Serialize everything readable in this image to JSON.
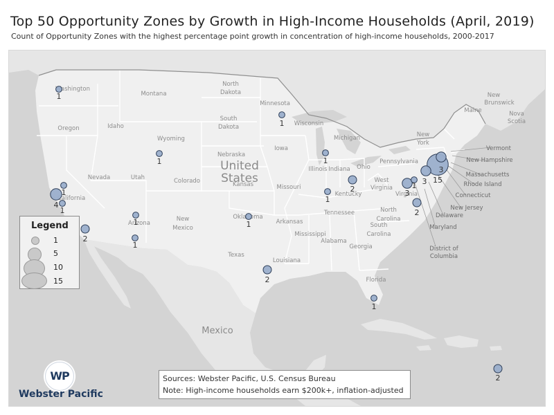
{
  "title": "Top 50 Opportunity Zones by Growth in High-Income Households (April, 2019)",
  "subtitle": "Count of Opportunity Zones with the highest percentage point growth in concentration of high-income households, 2000-2017",
  "country_labels": {
    "united_states_line1": "United",
    "united_states_line2": "States",
    "mexico": "Mexico"
  },
  "state_labels": [
    {
      "name": "washington",
      "text": "Washington"
    },
    {
      "name": "oregon",
      "text": "Oregon"
    },
    {
      "name": "california",
      "text": "California"
    },
    {
      "name": "nevada",
      "text": "Nevada"
    },
    {
      "name": "idaho",
      "text": "Idaho"
    },
    {
      "name": "montana",
      "text": "Montana"
    },
    {
      "name": "wyoming",
      "text": "Wyoming"
    },
    {
      "name": "utah",
      "text": "Utah"
    },
    {
      "name": "arizona",
      "text": "Arizona"
    },
    {
      "name": "colorado",
      "text": "Colorado"
    },
    {
      "name": "new-mexico-1",
      "text": "New"
    },
    {
      "name": "new-mexico-2",
      "text": "Mexico"
    },
    {
      "name": "north-dakota-1",
      "text": "North"
    },
    {
      "name": "north-dakota-2",
      "text": "Dakota"
    },
    {
      "name": "south-dakota-1",
      "text": "South"
    },
    {
      "name": "south-dakota-2",
      "text": "Dakota"
    },
    {
      "name": "nebraska",
      "text": "Nebraska"
    },
    {
      "name": "kansas",
      "text": "Kansas"
    },
    {
      "name": "oklahoma",
      "text": "Oklahoma"
    },
    {
      "name": "texas",
      "text": "Texas"
    },
    {
      "name": "minnesota",
      "text": "Minnesota"
    },
    {
      "name": "iowa",
      "text": "Iowa"
    },
    {
      "name": "missouri",
      "text": "Missouri"
    },
    {
      "name": "arkansas",
      "text": "Arkansas"
    },
    {
      "name": "louisiana",
      "text": "Louisiana"
    },
    {
      "name": "wisconsin",
      "text": "Wisconsin"
    },
    {
      "name": "illinois",
      "text": "Illinois"
    },
    {
      "name": "michigan",
      "text": "Michigan"
    },
    {
      "name": "indiana",
      "text": "Indiana"
    },
    {
      "name": "ohio",
      "text": "Ohio"
    },
    {
      "name": "kentucky",
      "text": "Kentucky"
    },
    {
      "name": "tennessee",
      "text": "Tennessee"
    },
    {
      "name": "mississippi",
      "text": "Mississippi"
    },
    {
      "name": "alabama",
      "text": "Alabama"
    },
    {
      "name": "georgia",
      "text": "Georgia"
    },
    {
      "name": "florida",
      "text": "Florida"
    },
    {
      "name": "south-carolina-1",
      "text": "South"
    },
    {
      "name": "south-carolina-2",
      "text": "Carolina"
    },
    {
      "name": "north-carolina-1",
      "text": "North"
    },
    {
      "name": "north-carolina-2",
      "text": "Carolina"
    },
    {
      "name": "virginia",
      "text": "Virginia"
    },
    {
      "name": "west-virginia-1",
      "text": "West"
    },
    {
      "name": "west-virginia-2",
      "text": "Virginia"
    },
    {
      "name": "pennsylvania",
      "text": "Pennsylvania"
    },
    {
      "name": "new-york-1",
      "text": "New"
    },
    {
      "name": "new-york-2",
      "text": "York"
    },
    {
      "name": "maine",
      "text": "Maine"
    },
    {
      "name": "new-brunswick-1",
      "text": "New"
    },
    {
      "name": "new-brunswick-2",
      "text": "Brunswick"
    },
    {
      "name": "nova-scotia-1",
      "text": "Nova"
    },
    {
      "name": "nova-scotia-2",
      "text": "Scotia"
    }
  ],
  "callout_labels": [
    {
      "name": "vermont",
      "text": "Vermont"
    },
    {
      "name": "new-hampshire",
      "text": "New Hampshire"
    },
    {
      "name": "massachusetts",
      "text": "Massachusetts"
    },
    {
      "name": "rhode-island",
      "text": "Rhode Island"
    },
    {
      "name": "connecticut",
      "text": "Connecticut"
    },
    {
      "name": "new-jersey",
      "text": "New Jersey"
    },
    {
      "name": "delaware",
      "text": "Delaware"
    },
    {
      "name": "maryland",
      "text": "Maryland"
    },
    {
      "name": "dc-1",
      "text": "District of"
    },
    {
      "name": "dc-2",
      "text": "Columbia"
    }
  ],
  "zones": [
    {
      "name": "washington",
      "count": 1
    },
    {
      "name": "california-north",
      "count": 1
    },
    {
      "name": "california-bay",
      "count": 4
    },
    {
      "name": "california-central",
      "count": 1
    },
    {
      "name": "california-south",
      "count": 2
    },
    {
      "name": "wyoming",
      "count": 1
    },
    {
      "name": "arizona-north",
      "count": 1
    },
    {
      "name": "arizona-south",
      "count": 1
    },
    {
      "name": "oklahoma",
      "count": 1
    },
    {
      "name": "texas-houston",
      "count": 2
    },
    {
      "name": "minnesota",
      "count": 1
    },
    {
      "name": "illinois",
      "count": 1
    },
    {
      "name": "missouri",
      "count": 1
    },
    {
      "name": "ohio",
      "count": 2
    },
    {
      "name": "dc",
      "count": 3
    },
    {
      "name": "maryland",
      "count": 1
    },
    {
      "name": "philadelphia",
      "count": 3
    },
    {
      "name": "new-york-city",
      "count": 15
    },
    {
      "name": "connecticut",
      "count": 3
    },
    {
      "name": "virginia",
      "count": 2
    },
    {
      "name": "florida",
      "count": 1
    },
    {
      "name": "puerto-rico",
      "count": 2
    }
  ],
  "legend": {
    "title": "Legend",
    "items": [
      {
        "label": "1",
        "value": 1
      },
      {
        "label": "5",
        "value": 5
      },
      {
        "label": "10",
        "value": 10
      },
      {
        "label": "15",
        "value": 15
      }
    ]
  },
  "logo": {
    "initials": "WP",
    "brand": "Webster Pacific"
  },
  "sources": {
    "line1": "Sources: Webster Pacific, U.S. Census Bureau",
    "line2": "Note: High-income households earn $200k+, inflation-adjusted"
  },
  "colors": {
    "land_us": "#f0f0f0",
    "land_other": "#e6e6e6",
    "water": "#d4d4d4",
    "border": "#ffffff",
    "bubble_fill": "#9aaecb",
    "bubble_stroke": "#2f3f58",
    "legend_swatch": "#c9c9c9"
  }
}
